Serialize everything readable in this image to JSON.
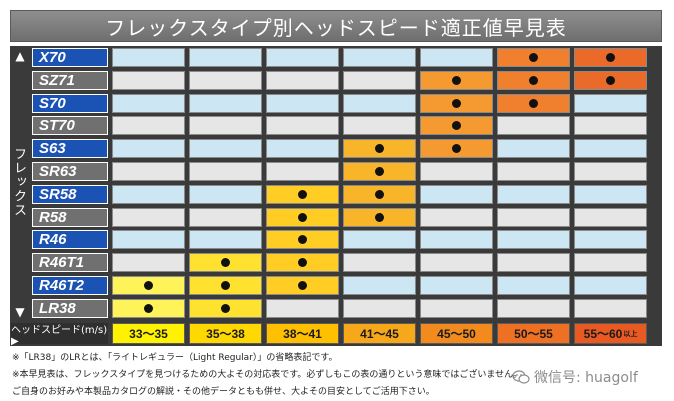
{
  "title": "フレックスタイプ別ヘッドスピード適正値早見表",
  "side_label": "フレックス",
  "arrows": {
    "up": "▲",
    "down": "▼"
  },
  "speed_header": "ヘッドスピード(m/s) ▶",
  "ranges": [
    {
      "label": "33～35",
      "color": "#fff200"
    },
    {
      "label": "35～38",
      "color": "#ffd800"
    },
    {
      "label": "38～41",
      "color": "#ffc000"
    },
    {
      "label": "41～45",
      "color": "#f7a81a"
    },
    {
      "label": "45～50",
      "color": "#f38a1e"
    },
    {
      "label": "50～55",
      "color": "#ee7022"
    },
    {
      "label": "55～60",
      "color": "#e85a22",
      "suffix": "以上"
    }
  ],
  "column_fill_colors": [
    "#fff35a",
    "#ffe130",
    "#ffcd24",
    "#f9b52a",
    "#f59a30",
    "#f07f2e",
    "#ea6a2a"
  ],
  "empty_cell_colors": {
    "odd": "#cce6f4",
    "even": "#e6e6e6"
  },
  "rows": [
    {
      "label": "X70",
      "style": "blue",
      "dots": [
        0,
        0,
        0,
        0,
        0,
        1,
        1
      ]
    },
    {
      "label": "SZ71",
      "style": "grey",
      "dots": [
        0,
        0,
        0,
        0,
        1,
        1,
        1
      ]
    },
    {
      "label": "S70",
      "style": "blue",
      "dots": [
        0,
        0,
        0,
        0,
        1,
        1,
        0
      ]
    },
    {
      "label": "ST70",
      "style": "grey",
      "dots": [
        0,
        0,
        0,
        0,
        1,
        0,
        0
      ]
    },
    {
      "label": "S63",
      "style": "blue",
      "dots": [
        0,
        0,
        0,
        1,
        1,
        0,
        0
      ]
    },
    {
      "label": "SR63",
      "style": "grey",
      "dots": [
        0,
        0,
        0,
        1,
        0,
        0,
        0
      ]
    },
    {
      "label": "SR58",
      "style": "blue",
      "dots": [
        0,
        0,
        1,
        1,
        0,
        0,
        0
      ]
    },
    {
      "label": "R58",
      "style": "grey",
      "dots": [
        0,
        0,
        1,
        1,
        0,
        0,
        0
      ]
    },
    {
      "label": "R46",
      "style": "blue",
      "dots": [
        0,
        0,
        1,
        0,
        0,
        0,
        0
      ]
    },
    {
      "label": "R46T1",
      "style": "grey",
      "dots": [
        0,
        1,
        1,
        0,
        0,
        0,
        0
      ]
    },
    {
      "label": "R46T2",
      "style": "blue",
      "dots": [
        1,
        1,
        1,
        0,
        0,
        0,
        0
      ]
    },
    {
      "label": "LR38",
      "style": "grey",
      "dots": [
        1,
        1,
        0,
        0,
        0,
        0,
        0
      ]
    }
  ],
  "notes": [
    "※「LR38」のLRとは、「ライトレギュラー（Light Regular）」の省略表記です。",
    "※本早見表は、フレックスタイプを見つけるための大よその対応表です。必ずしもこの表の通りという意味ではございません。",
    "ご自身のお好みや本製品カタログの解説・その他データともも併せ、大よその目安としてご活用下さい。"
  ],
  "watermark": "微信号: huagolf"
}
